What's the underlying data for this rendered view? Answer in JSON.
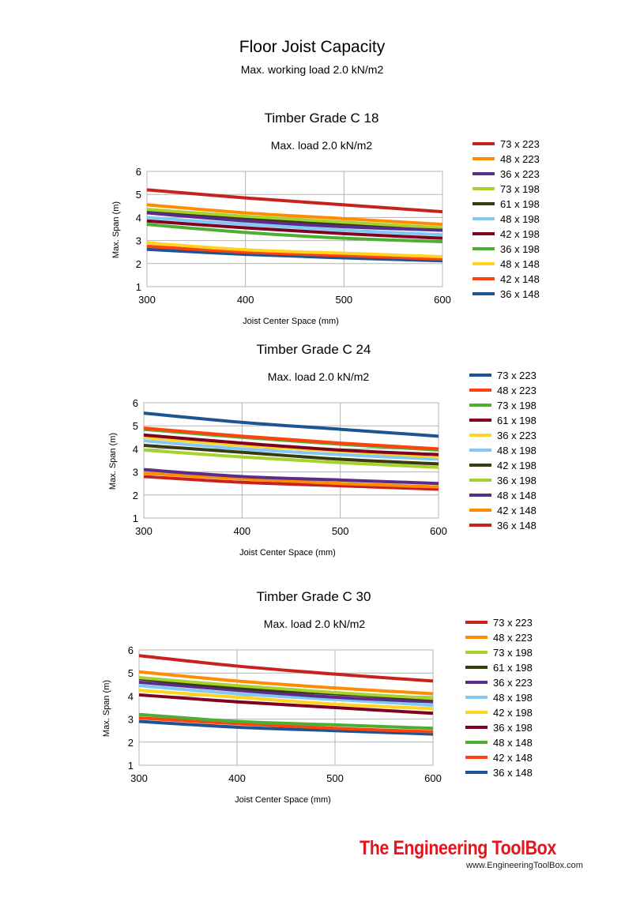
{
  "page": {
    "title": "Floor Joist Capacity",
    "subtitle": "Max. working load 2.0 kN/m2"
  },
  "footer": {
    "logo": "The Engineering ToolBox",
    "url": "www.EngineeringToolBox.com"
  },
  "chart_data": [
    {
      "type": "line",
      "title": "Timber Grade C 18",
      "subtitle": "Max. load 2.0 kN/m2",
      "xlabel": "Joist Center Space (mm)",
      "ylabel": "Max. Span (m)",
      "xlim": [
        300,
        600
      ],
      "ylim": [
        1,
        6
      ],
      "xticks": [
        300,
        400,
        500,
        600
      ],
      "yticks": [
        1,
        2,
        3,
        4,
        5,
        6
      ],
      "grid": true,
      "legend": "right",
      "x": [
        300,
        400,
        500,
        600
      ],
      "series": [
        {
          "name": "73 x 223",
          "color": "#c9211e",
          "values": [
            5.2,
            4.85,
            4.55,
            4.25
          ]
        },
        {
          "name": "48 x 223",
          "color": "#ff8c00",
          "values": [
            4.55,
            4.2,
            3.95,
            3.7
          ]
        },
        {
          "name": "36 x 223",
          "color": "#5a2d8a",
          "values": [
            4.2,
            3.85,
            3.6,
            3.45
          ]
        },
        {
          "name": "73 x 198",
          "color": "#a6d22d",
          "values": [
            4.35,
            4.05,
            3.8,
            3.55
          ]
        },
        {
          "name": "61 x 198",
          "color": "#3a3a10",
          "values": [
            4.25,
            3.95,
            3.7,
            3.45
          ]
        },
        {
          "name": "48 x 198",
          "color": "#82c8f4",
          "values": [
            4.0,
            3.7,
            3.45,
            3.25
          ]
        },
        {
          "name": "42 x 198",
          "color": "#800020",
          "values": [
            3.85,
            3.55,
            3.3,
            3.1
          ]
        },
        {
          "name": "36 x 198",
          "color": "#4caf33",
          "values": [
            3.7,
            3.35,
            3.1,
            2.95
          ]
        },
        {
          "name": "48 x 148",
          "color": "#ffd320",
          "values": [
            2.9,
            2.6,
            2.45,
            2.3
          ]
        },
        {
          "name": "42 x 148",
          "color": "#ff420e",
          "values": [
            2.75,
            2.5,
            2.35,
            2.2
          ]
        },
        {
          "name": "36 x 148",
          "color": "#1c5591",
          "values": [
            2.62,
            2.4,
            2.25,
            2.12
          ]
        }
      ]
    },
    {
      "type": "line",
      "title": "Timber Grade C 24",
      "subtitle": "Max. load 2.0 kN/m2",
      "xlabel": "Joist Center Space (mm)",
      "ylabel": "Max. Span (m)",
      "xlim": [
        300,
        600
      ],
      "ylim": [
        1,
        6
      ],
      "xticks": [
        300,
        400,
        500,
        600
      ],
      "yticks": [
        1,
        2,
        3,
        4,
        5,
        6
      ],
      "grid": true,
      "legend": "right",
      "x": [
        300,
        400,
        500,
        600
      ],
      "series": [
        {
          "name": "73 x 223",
          "color": "#1c5591",
          "values": [
            5.55,
            5.15,
            4.85,
            4.55
          ]
        },
        {
          "name": "48 x 223",
          "color": "#ff420e",
          "values": [
            4.9,
            4.55,
            4.25,
            4.0
          ]
        },
        {
          "name": "73 x 198",
          "color": "#4caf33",
          "values": [
            4.85,
            4.5,
            4.2,
            3.95
          ]
        },
        {
          "name": "61 x 198",
          "color": "#800020",
          "values": [
            4.6,
            4.25,
            3.95,
            3.75
          ]
        },
        {
          "name": "36 x 223",
          "color": "#ffd320",
          "values": [
            4.5,
            4.15,
            3.9,
            3.65
          ]
        },
        {
          "name": "48 x 198",
          "color": "#82c8f4",
          "values": [
            4.35,
            4.0,
            3.75,
            3.55
          ]
        },
        {
          "name": "42 x 198",
          "color": "#3a3a10",
          "values": [
            4.15,
            3.85,
            3.55,
            3.35
          ]
        },
        {
          "name": "36 x 198",
          "color": "#a6d22d",
          "values": [
            3.95,
            3.65,
            3.4,
            3.2
          ]
        },
        {
          "name": "48 x 148",
          "color": "#5a2d8a",
          "values": [
            3.1,
            2.8,
            2.65,
            2.5
          ]
        },
        {
          "name": "42 x 148",
          "color": "#ff8c00",
          "values": [
            2.95,
            2.7,
            2.5,
            2.35
          ]
        },
        {
          "name": "36 x 148",
          "color": "#c9211e",
          "values": [
            2.8,
            2.55,
            2.4,
            2.25
          ]
        }
      ]
    },
    {
      "type": "line",
      "title": "Timber Grade C 30",
      "subtitle": "Max. load 2.0 kN/m2",
      "xlabel": "Joist Center Space (mm)",
      "ylabel": "Max. Span (m)",
      "xlim": [
        300,
        600
      ],
      "ylim": [
        1,
        6
      ],
      "xticks": [
        300,
        400,
        500,
        600
      ],
      "yticks": [
        1,
        2,
        3,
        4,
        5,
        6
      ],
      "grid": true,
      "legend": "right",
      "x": [
        300,
        400,
        500,
        600
      ],
      "series": [
        {
          "name": "73 x 223",
          "color": "#c9211e",
          "values": [
            5.75,
            5.3,
            4.95,
            4.65
          ]
        },
        {
          "name": "48 x 223",
          "color": "#ff8c00",
          "values": [
            5.05,
            4.65,
            4.35,
            4.1
          ]
        },
        {
          "name": "73 x 198",
          "color": "#a6d22d",
          "values": [
            4.8,
            4.45,
            4.15,
            3.9
          ]
        },
        {
          "name": "61 x 198",
          "color": "#3a3a10",
          "values": [
            4.75,
            4.35,
            4.1,
            3.85
          ]
        },
        {
          "name": "36 x 223",
          "color": "#5a2d8a",
          "values": [
            4.6,
            4.25,
            3.95,
            3.75
          ]
        },
        {
          "name": "48 x 198",
          "color": "#82c8f4",
          "values": [
            4.45,
            4.1,
            3.85,
            3.6
          ]
        },
        {
          "name": "42 x 198",
          "color": "#ffd320",
          "values": [
            4.25,
            3.95,
            3.65,
            3.45
          ]
        },
        {
          "name": "36 x 198",
          "color": "#800020",
          "values": [
            4.05,
            3.75,
            3.5,
            3.25
          ]
        },
        {
          "name": "48 x 148",
          "color": "#4caf33",
          "values": [
            3.2,
            2.9,
            2.75,
            2.6
          ]
        },
        {
          "name": "42 x 148",
          "color": "#ff420e",
          "values": [
            3.05,
            2.8,
            2.6,
            2.45
          ]
        },
        {
          "name": "36 x 148",
          "color": "#1c5591",
          "values": [
            2.9,
            2.65,
            2.5,
            2.35
          ]
        }
      ]
    }
  ]
}
